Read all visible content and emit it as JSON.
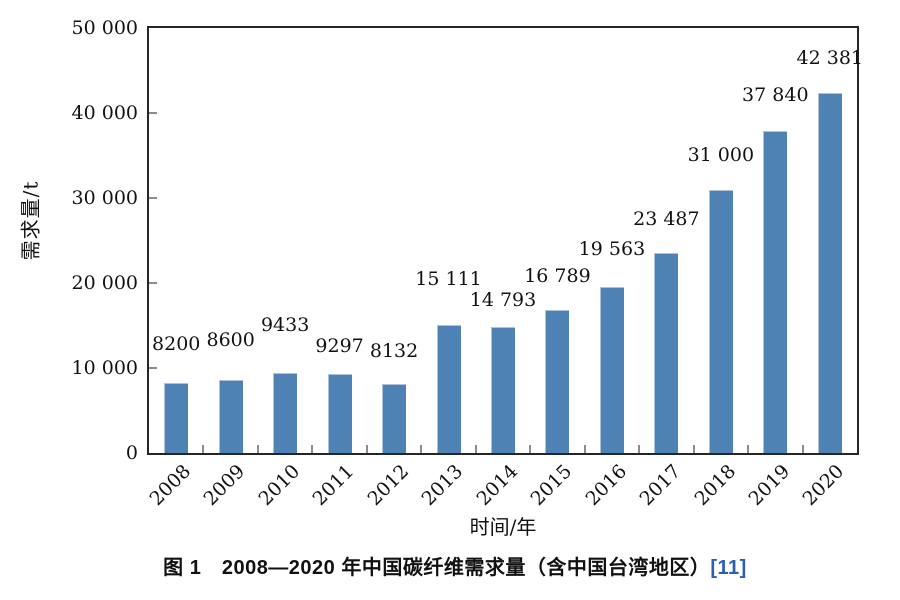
{
  "chart_data": {
    "type": "bar",
    "categories": [
      "2008",
      "2009",
      "2010",
      "2011",
      "2012",
      "2013",
      "2014",
      "2015",
      "2016",
      "2017",
      "2018",
      "2019",
      "2020"
    ],
    "values": [
      8200,
      8600,
      9433,
      9297,
      8132,
      15111,
      14793,
      16789,
      19563,
      23487,
      31000,
      37840,
      42381
    ],
    "value_labels": [
      "8200",
      "8600",
      "9433",
      "9297",
      "8132",
      "15 111",
      "14 793",
      "16 789",
      "19 563",
      "23 487",
      "31 000",
      "37 840",
      "42 381"
    ],
    "label_offsets": [
      33,
      34,
      42,
      22,
      27,
      40,
      21,
      28,
      32,
      28,
      29,
      30,
      29
    ],
    "title": "图 1　2008—2020 年中国碳纤维需求量（含中国台湾地区）",
    "citation": "[11]",
    "xlabel": "时间/年",
    "ylabel": "需求量/t",
    "ylim": [
      0,
      50000
    ],
    "ytick_step": 10000,
    "ytick_labels": [
      "0",
      "10 000",
      "20 000",
      "30 000",
      "40 000",
      "50 000"
    ],
    "bar_color": "#4e81b4",
    "bar_edge_color": "#aec2dc",
    "axis_color": "#262626",
    "tick_color": "#8c8c8c",
    "text_color": "#111111",
    "citation_color": "#2e5fae",
    "grid": false,
    "legend": "none"
  }
}
